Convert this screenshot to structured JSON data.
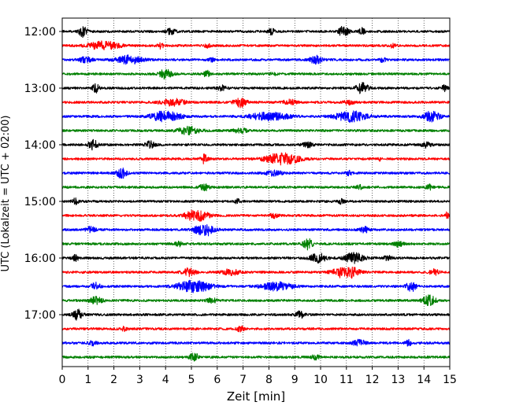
{
  "chart_data": {
    "type": "line",
    "title": "",
    "xlabel": "Zeit  [min]",
    "ylabel": "UTC (Lokalzeit = UTC + 02:00)",
    "xlim": [
      0,
      15
    ],
    "x_ticks": [
      "0",
      "1",
      "2",
      "3",
      "4",
      "5",
      "6",
      "7",
      "8",
      "9",
      "10",
      "11",
      "12",
      "13",
      "14",
      "15"
    ],
    "y_tick_labels": [
      "12:00",
      "13:00",
      "14:00",
      "15:00",
      "16:00",
      "17:00"
    ],
    "grid": "x-only dotted",
    "legend": "none",
    "trace_start_hour": 12,
    "trace_interval_minutes": 15,
    "trace_count": 24,
    "colors": [
      "#000000",
      "#ff0000",
      "#0000ff",
      "#008000"
    ],
    "series": [
      {
        "start": "12:00",
        "color": "#000000",
        "events": [
          [
            0.8,
            0.8,
            0.25
          ],
          [
            4.2,
            0.4,
            0.3
          ],
          [
            8.1,
            0.5,
            0.2
          ],
          [
            10.9,
            0.9,
            0.3
          ],
          [
            11.6,
            0.5,
            0.2
          ]
        ]
      },
      {
        "start": "12:15",
        "color": "#ff0000",
        "events": [
          [
            1.6,
            0.6,
            1.0
          ],
          [
            3.8,
            0.4,
            0.2
          ],
          [
            5.6,
            0.3,
            0.2
          ],
          [
            12.8,
            0.3,
            0.2
          ]
        ]
      },
      {
        "start": "12:30",
        "color": "#0000ff",
        "events": [
          [
            0.9,
            0.4,
            0.4
          ],
          [
            2.6,
            0.6,
            0.8
          ],
          [
            5.8,
            0.3,
            0.2
          ],
          [
            9.8,
            0.6,
            0.4
          ],
          [
            12.4,
            0.3,
            0.2
          ]
        ]
      },
      {
        "start": "12:45",
        "color": "#008000",
        "events": [
          [
            4.0,
            0.7,
            0.4
          ],
          [
            5.6,
            0.5,
            0.2
          ],
          [
            8.2,
            0.3,
            0.2
          ]
        ]
      },
      {
        "start": "13:00",
        "color": "#000000",
        "events": [
          [
            1.3,
            0.7,
            0.2
          ],
          [
            6.2,
            0.4,
            0.3
          ],
          [
            11.6,
            0.8,
            0.4
          ],
          [
            14.8,
            0.4,
            0.2
          ]
        ]
      },
      {
        "start": "13:15",
        "color": "#ff0000",
        "events": [
          [
            4.3,
            0.5,
            0.8
          ],
          [
            6.9,
            0.7,
            0.4
          ],
          [
            8.8,
            0.4,
            0.4
          ],
          [
            11.1,
            0.4,
            0.3
          ]
        ]
      },
      {
        "start": "13:30",
        "color": "#0000ff",
        "events": [
          [
            4.0,
            0.8,
            0.9
          ],
          [
            8.0,
            0.6,
            1.3
          ],
          [
            11.2,
            0.8,
            1.0
          ],
          [
            14.3,
            0.8,
            0.5
          ]
        ]
      },
      {
        "start": "13:45",
        "color": "#008000",
        "events": [
          [
            4.9,
            0.6,
            0.7
          ],
          [
            6.9,
            0.4,
            0.4
          ]
        ]
      },
      {
        "start": "14:00",
        "color": "#000000",
        "events": [
          [
            1.2,
            0.7,
            0.3
          ],
          [
            3.4,
            0.5,
            0.3
          ],
          [
            9.5,
            0.4,
            0.3
          ],
          [
            14.1,
            0.4,
            0.3
          ]
        ]
      },
      {
        "start": "14:15",
        "color": "#ff0000",
        "events": [
          [
            5.5,
            0.7,
            0.2
          ],
          [
            8.5,
            1.0,
            1.0
          ],
          [
            12.3,
            0.4,
            0.1
          ]
        ]
      },
      {
        "start": "14:30",
        "color": "#0000ff",
        "events": [
          [
            2.3,
            0.8,
            0.3
          ],
          [
            8.2,
            0.4,
            0.5
          ],
          [
            11.1,
            0.3,
            0.2
          ]
        ]
      },
      {
        "start": "14:45",
        "color": "#008000",
        "events": [
          [
            5.5,
            0.5,
            0.3
          ],
          [
            11.5,
            0.3,
            0.2
          ],
          [
            14.2,
            0.4,
            0.2
          ]
        ]
      },
      {
        "start": "15:00",
        "color": "#000000",
        "events": [
          [
            0.5,
            0.4,
            0.2
          ],
          [
            6.8,
            0.3,
            0.2
          ],
          [
            10.8,
            0.3,
            0.2
          ]
        ]
      },
      {
        "start": "15:15",
        "color": "#ff0000",
        "events": [
          [
            5.2,
            0.9,
            0.7
          ],
          [
            8.2,
            0.3,
            0.3
          ],
          [
            14.9,
            0.6,
            0.1
          ]
        ]
      },
      {
        "start": "15:30",
        "color": "#0000ff",
        "events": [
          [
            1.1,
            0.4,
            0.3
          ],
          [
            5.5,
            1.0,
            0.6
          ],
          [
            11.7,
            0.4,
            0.3
          ]
        ]
      },
      {
        "start": "15:45",
        "color": "#008000",
        "events": [
          [
            4.5,
            0.4,
            0.2
          ],
          [
            9.5,
            0.8,
            0.3
          ],
          [
            13.0,
            0.4,
            0.3
          ]
        ]
      },
      {
        "start": "16:00",
        "color": "#000000",
        "events": [
          [
            0.5,
            0.5,
            0.2
          ],
          [
            9.9,
            0.7,
            0.5
          ],
          [
            11.3,
            0.8,
            0.6
          ],
          [
            12.6,
            0.3,
            0.3
          ]
        ]
      },
      {
        "start": "16:15",
        "color": "#ff0000",
        "events": [
          [
            4.9,
            0.6,
            0.4
          ],
          [
            6.5,
            0.4,
            0.6
          ],
          [
            11.0,
            1.0,
            0.8
          ],
          [
            14.4,
            0.5,
            0.3
          ]
        ]
      },
      {
        "start": "16:30",
        "color": "#0000ff",
        "events": [
          [
            1.3,
            0.5,
            0.3
          ],
          [
            5.1,
            1.0,
            1.0
          ],
          [
            8.3,
            0.6,
            1.0
          ],
          [
            13.5,
            0.8,
            0.3
          ]
        ]
      },
      {
        "start": "16:45",
        "color": "#008000",
        "events": [
          [
            1.3,
            0.5,
            0.4
          ],
          [
            5.8,
            0.4,
            0.3
          ],
          [
            14.2,
            0.8,
            0.4
          ]
        ]
      },
      {
        "start": "17:00",
        "color": "#000000",
        "events": [
          [
            0.6,
            0.8,
            0.3
          ],
          [
            9.2,
            0.5,
            0.3
          ]
        ]
      },
      {
        "start": "17:15",
        "color": "#ff0000",
        "events": [
          [
            2.4,
            0.3,
            0.2
          ],
          [
            6.9,
            0.6,
            0.2
          ]
        ]
      },
      {
        "start": "17:30",
        "color": "#0000ff",
        "events": [
          [
            1.2,
            0.3,
            0.3
          ],
          [
            11.5,
            0.5,
            0.4
          ],
          [
            13.4,
            0.4,
            0.2
          ]
        ]
      },
      {
        "start": "17:45",
        "color": "#008000",
        "events": [
          [
            5.1,
            0.6,
            0.3
          ],
          [
            9.8,
            0.3,
            0.3
          ]
        ]
      }
    ]
  }
}
